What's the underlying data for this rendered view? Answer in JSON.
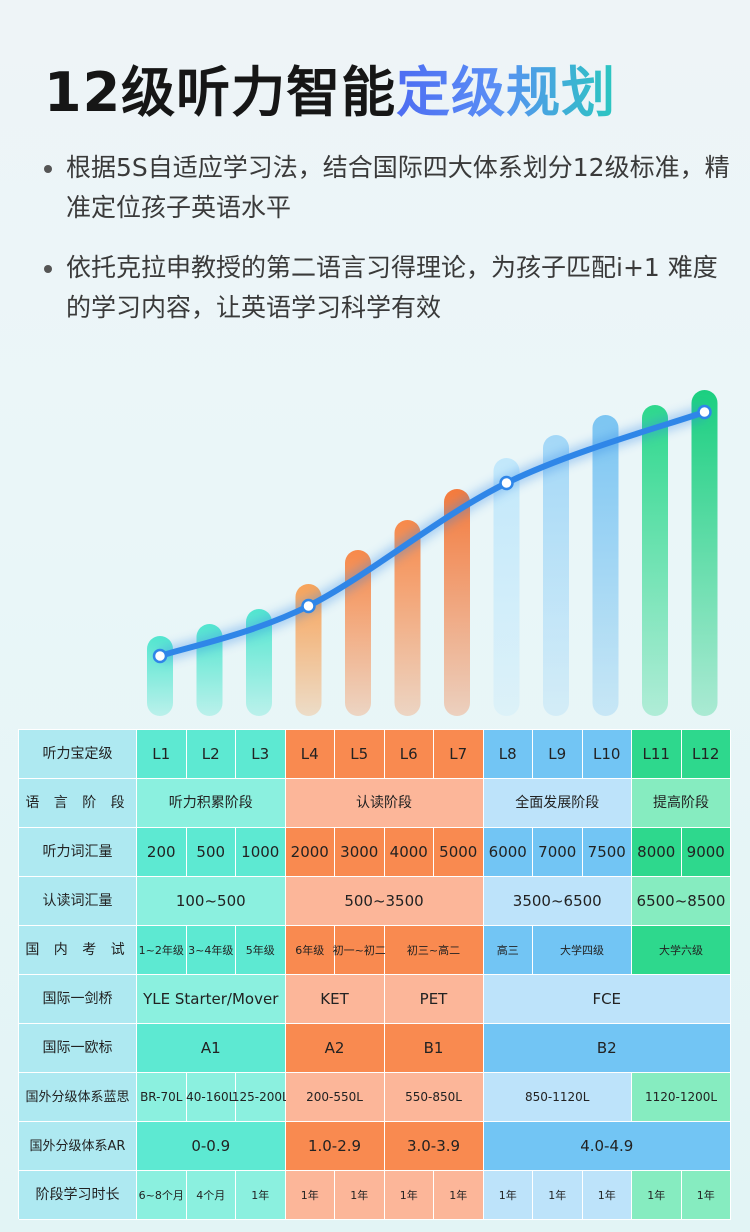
{
  "title": {
    "main": "12级听力智能",
    "highlight": "定级规划"
  },
  "bullets": [
    "根据5S自适应学习法，结合国际四大体系划分12级标准，精准定位孩子英语水平",
    "依托克拉申教授的第二语言习得理论，为孩子匹配i+1 难度的学习内容，让英语学习科学有效"
  ],
  "chart_data": {
    "type": "bar",
    "categories": [
      "L1",
      "L2",
      "L3",
      "L4",
      "L5",
      "L6",
      "L7",
      "L8",
      "L9",
      "L10",
      "L11",
      "L12"
    ],
    "values": [
      80,
      92,
      107,
      132,
      166,
      196,
      227,
      258,
      281,
      301,
      311,
      326
    ],
    "curve_points": [
      {
        "category": "L1",
        "value": 60
      },
      {
        "category": "L4",
        "value": 110
      },
      {
        "category": "L8",
        "value": 233
      },
      {
        "category": "L12",
        "value": 304
      }
    ],
    "colors": [
      "#52e6cf",
      "#52e6cf",
      "#52e6cf",
      "#f7a35a",
      "#f7894a",
      "#f7894a",
      "#f47a3c",
      "#c2e8fb",
      "#a4d8f7",
      "#7cc5f2",
      "#2ed88d",
      "#1bcf80"
    ],
    "curve_color": "#2f86e8"
  },
  "table": {
    "rows": {
      "level": {
        "label": "听力宝定级",
        "cells": [
          "L1",
          "L2",
          "L3",
          "L4",
          "L5",
          "L6",
          "L7",
          "L8",
          "L9",
          "L10",
          "L11",
          "L12"
        ]
      },
      "stage": {
        "label": "语 言 阶 段",
        "cells": [
          "听力积累阶段",
          "认读阶段",
          "全面发展阶段",
          "提高阶段"
        ]
      },
      "vocab_listen": {
        "label": "听力词汇量",
        "cells": [
          "200",
          "500",
          "1000",
          "2000",
          "3000",
          "4000",
          "5000",
          "6000",
          "7000",
          "7500",
          "8000",
          "9000"
        ]
      },
      "vocab_read": {
        "label": "认读词汇量",
        "cells": [
          "100~500",
          "500~3500",
          "3500~6500",
          "6500~8500"
        ]
      },
      "domestic": {
        "label": "国 内 考 试",
        "cells": [
          "1~2年级",
          "3~4年级",
          "5年级",
          "6年级",
          "初一~初二",
          "初三~高二",
          "高三",
          "大学四级",
          "大学六级"
        ]
      },
      "cambridge": {
        "label": "国际一剑桥",
        "cells": [
          "YLE Starter/Mover",
          "KET",
          "PET",
          "FCE"
        ]
      },
      "cefr": {
        "label": "国际一欧标",
        "cells": [
          "A1",
          "A2",
          "B1",
          "B2"
        ]
      },
      "lexile": {
        "label": "国外分级体系蓝思",
        "cells": [
          "BR-70L",
          "40-160L",
          "125-200L",
          "200-550L",
          "550-850L",
          "850-1120L",
          "1120-1200L"
        ]
      },
      "ar": {
        "label": "国外分级体系AR",
        "cells": [
          "0-0.9",
          "1.0-2.9",
          "3.0-3.9",
          "4.0-4.9"
        ]
      },
      "duration": {
        "label": "阶段学习时长",
        "cells": [
          "6~8个月",
          "4个月",
          "1年",
          "1年",
          "1年",
          "1年",
          "1年",
          "1年",
          "1年",
          "1年",
          "1年",
          "1年"
        ]
      }
    }
  }
}
